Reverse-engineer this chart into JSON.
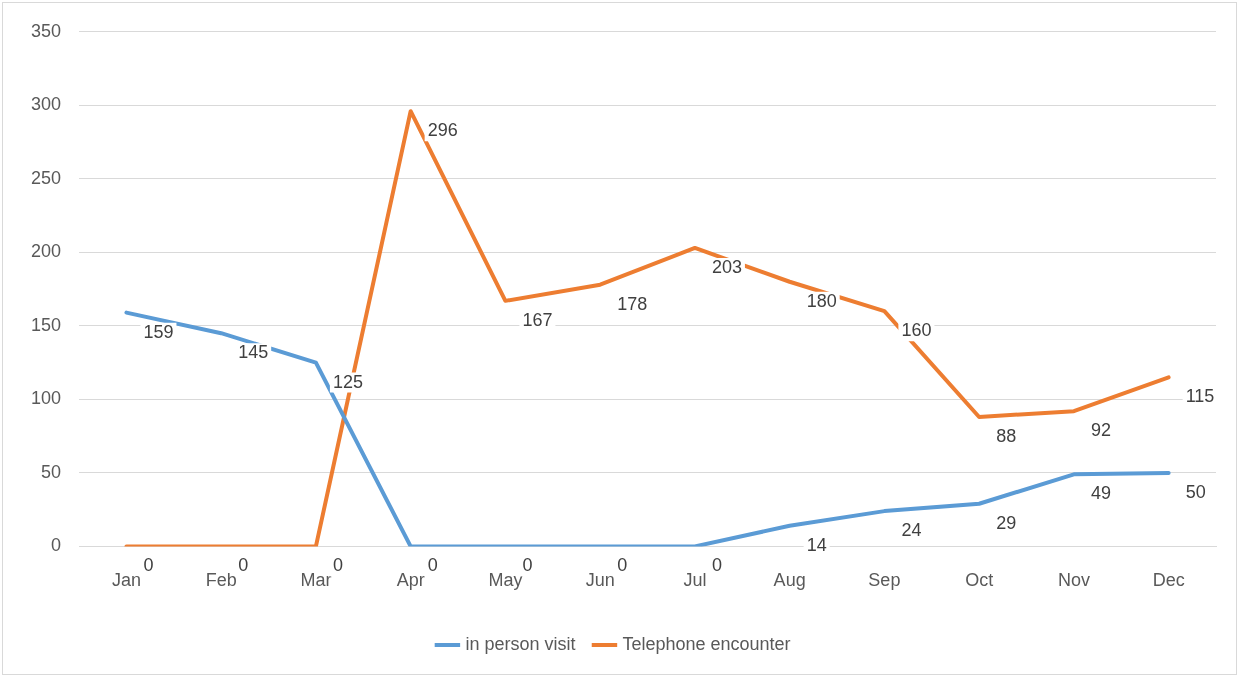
{
  "chart_data": {
    "type": "line",
    "categories": [
      "Jan",
      "Feb",
      "Mar",
      "Apr",
      "May",
      "Jun",
      "Jul",
      "Aug",
      "Sep",
      "Oct",
      "Nov",
      "Dec"
    ],
    "series": [
      {
        "name": "in person visit",
        "color": "#5b9bd5",
        "values": [
          159,
          145,
          125,
          0,
          0,
          0,
          0,
          14,
          24,
          29,
          49,
          50
        ]
      },
      {
        "name": "Telephone encounter",
        "color": "#ed7d31",
        "values": [
          0,
          0,
          0,
          296,
          167,
          178,
          203,
          180,
          160,
          88,
          92,
          115
        ]
      }
    ],
    "ylim": [
      0,
      350
    ],
    "yticks": [
      0,
      50,
      100,
      150,
      200,
      250,
      300,
      350
    ],
    "grid": "y",
    "legend": "bottom",
    "data_labels": true,
    "marker": "none",
    "line_style": "solid"
  }
}
